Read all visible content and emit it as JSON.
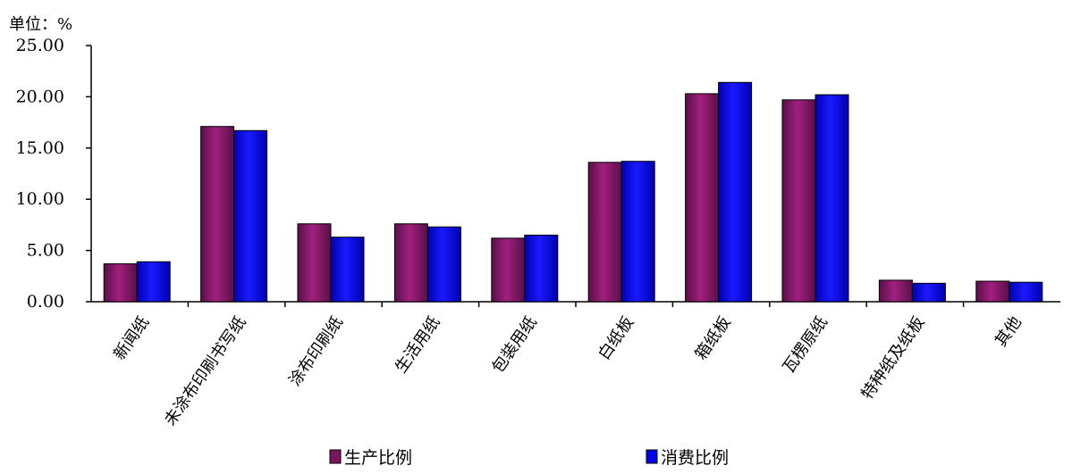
{
  "chart_data": {
    "type": "bar",
    "unit_label": "单位：%",
    "categories": [
      "新闻纸",
      "未涂布印刷书写纸",
      "涂布印刷纸",
      "生活用纸",
      "包装用纸",
      "白纸板",
      "箱纸板",
      "瓦楞原纸",
      "特种纸及纸板",
      "其他"
    ],
    "series": [
      {
        "name": "生产比例",
        "color": "#7a1660",
        "values": [
          3.7,
          17.1,
          7.6,
          7.6,
          6.2,
          13.6,
          20.3,
          19.7,
          2.1,
          2.0
        ]
      },
      {
        "name": "消费比例",
        "color": "#0000ee",
        "values": [
          3.9,
          16.7,
          6.3,
          7.3,
          6.5,
          13.7,
          21.4,
          20.2,
          1.8,
          1.9
        ]
      }
    ],
    "ylim": [
      0,
      25
    ],
    "yticks": [
      "0.00",
      "5.00",
      "10.00",
      "15.00",
      "20.00",
      "25.00"
    ],
    "grid": false,
    "legend_position": "bottom"
  }
}
